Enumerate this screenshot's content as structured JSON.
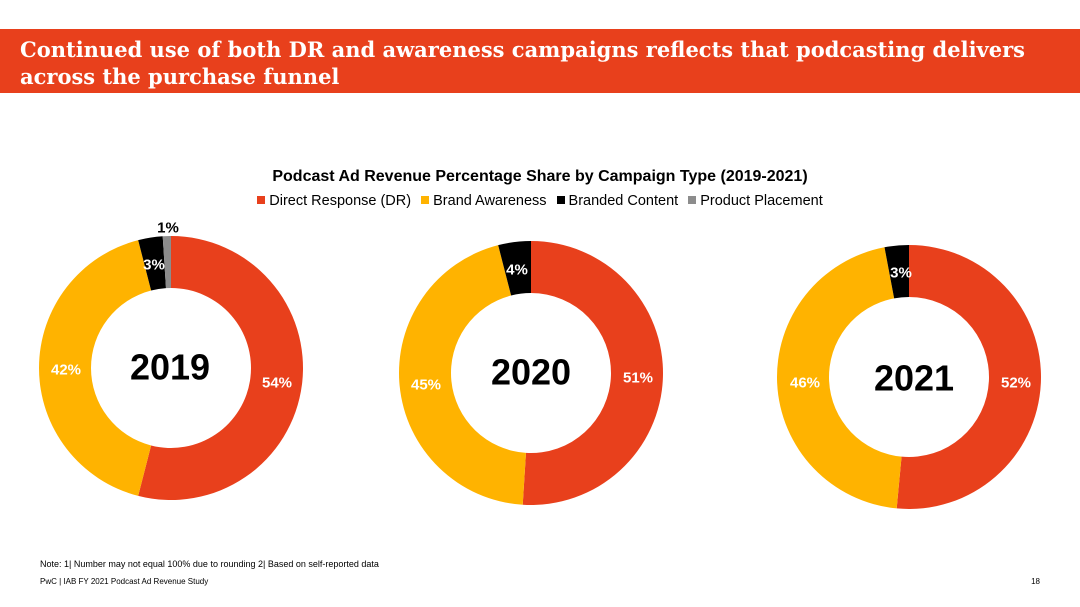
{
  "slide": {
    "title": "Continued use of both DR and awareness campaigns reflects that podcasting delivers across the purchase funnel",
    "title_bar_color": "#e8401c",
    "note": "Note: 1| Number may not equal 100% due to rounding 2| Based on self-reported data",
    "footer": "PwC  |  IAB FY 2021 Podcast Ad Revenue Study",
    "page_number": "18"
  },
  "chart_data": {
    "type": "donut",
    "title": "Podcast Ad Revenue Percentage Share by Campaign Type (2019-2021)",
    "legend_position": "top",
    "series": [
      {
        "name": "Direct Response (DR)",
        "color": "#e8401c"
      },
      {
        "name": "Brand Awareness",
        "color": "#ffb300"
      },
      {
        "name": "Branded Content",
        "color": "#000000"
      },
      {
        "name": "Product Placement",
        "color": "#8c8c8c"
      }
    ],
    "charts": [
      {
        "year": "2019",
        "values": [
          54,
          42,
          3,
          1
        ],
        "labels": [
          "54%",
          "42%",
          "3%",
          "1%"
        ]
      },
      {
        "year": "2020",
        "values": [
          51,
          45,
          4,
          0
        ],
        "labels": [
          "51%",
          "45%",
          "4%",
          ""
        ]
      },
      {
        "year": "2021",
        "values": [
          52,
          46,
          3,
          0
        ],
        "labels": [
          "52%",
          "46%",
          "3%",
          ""
        ]
      }
    ]
  }
}
